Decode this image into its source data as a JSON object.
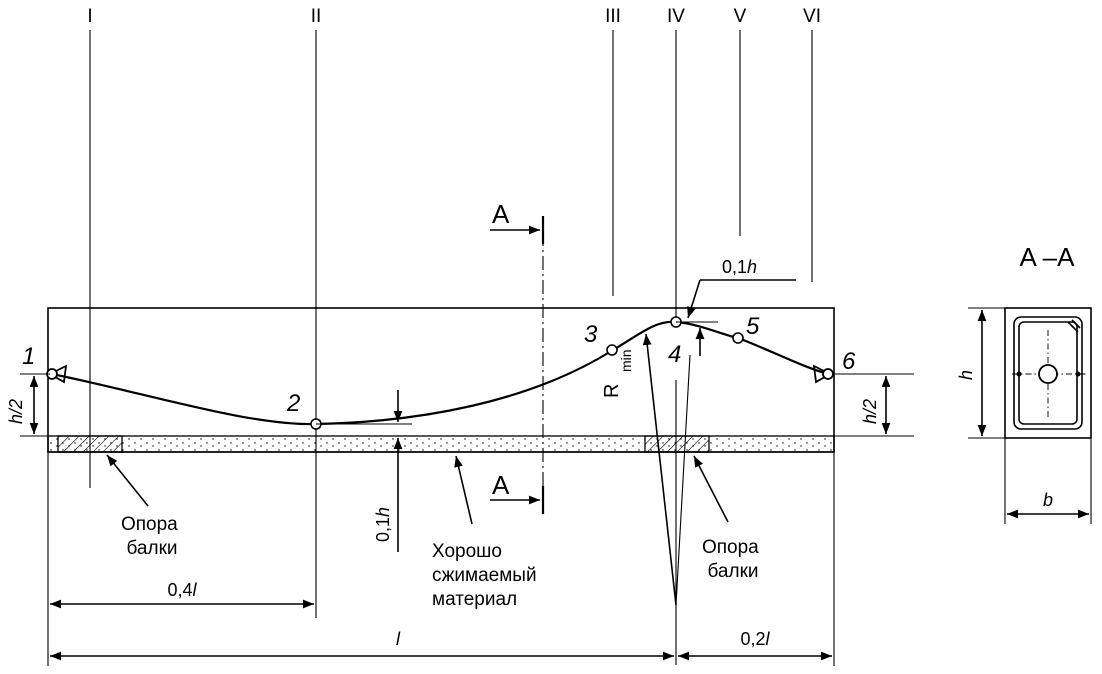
{
  "sections": [
    "I",
    "II",
    "III",
    "IV",
    "V",
    "VI"
  ],
  "points": [
    "1",
    "2",
    "3",
    "4",
    "5",
    "6"
  ],
  "cut_label": "A",
  "section_title": "A –A",
  "radius_label": "R",
  "radius_sub": "min",
  "dims": {
    "zero_one_h": "0,1",
    "h": "h",
    "h_half": "h/2",
    "zero_four_l": "0,4",
    "l": "l",
    "zero_two_l": "0,2",
    "b": "b"
  },
  "labels": {
    "support_left": [
      "Опора",
      "балки"
    ],
    "support_right": [
      "Опора",
      "балки"
    ],
    "material": [
      "Хорошо",
      "сжимаемый",
      "материал"
    ]
  }
}
